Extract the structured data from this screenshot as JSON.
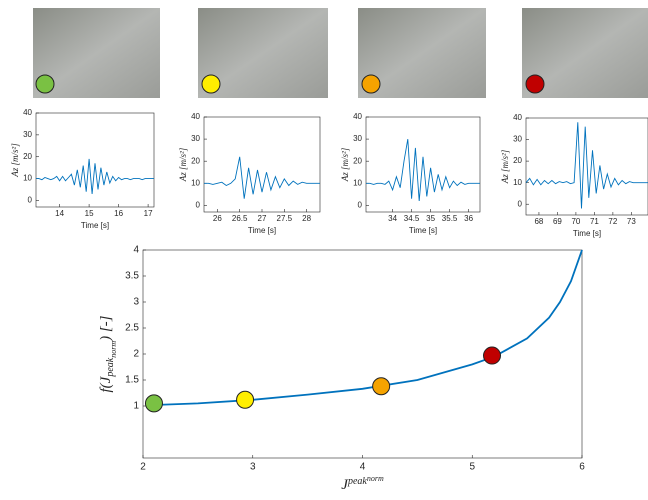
{
  "chart_data": [
    {
      "type": "line",
      "color": "#0072bd",
      "xlabel": "Time [s]",
      "ylabel": "Az [m/s²]",
      "x": [
        13.2,
        13.3,
        13.4,
        13.5,
        13.6,
        13.7,
        13.8,
        13.9,
        14.0,
        14.1,
        14.2,
        14.3,
        14.4,
        14.5,
        14.6,
        14.7,
        14.8,
        14.9,
        15.0,
        15.1,
        15.2,
        15.3,
        15.4,
        15.5,
        15.6,
        15.7,
        15.8,
        15.9,
        16.0,
        16.1,
        16.2,
        16.3,
        16.4,
        16.5,
        16.6,
        16.7,
        16.8,
        16.9,
        17.0,
        17.1,
        17.2
      ],
      "values": [
        10,
        10,
        9.5,
        10.5,
        10,
        9.5,
        10,
        11,
        9,
        11,
        9,
        10.5,
        12,
        7,
        14,
        6,
        16,
        4,
        19,
        3,
        17,
        5,
        15,
        7,
        13,
        8,
        11,
        9,
        10.5,
        9.5,
        10,
        10,
        9.5,
        10,
        10,
        10,
        9.5,
        10,
        10,
        10,
        10
      ],
      "xlim": [
        13.2,
        17.2
      ],
      "xticks": [
        14,
        15,
        16,
        17
      ],
      "ylim": [
        -3,
        40
      ],
      "yticks": [
        0,
        10,
        20,
        30,
        40
      ]
    },
    {
      "type": "line",
      "color": "#0072bd",
      "xlabel": "Time [s]",
      "ylabel": "Az [m/s²]",
      "x": [
        25.7,
        25.8,
        25.9,
        26.0,
        26.1,
        26.2,
        26.3,
        26.4,
        26.5,
        26.6,
        26.7,
        26.8,
        26.9,
        27.0,
        27.1,
        27.2,
        27.3,
        27.4,
        27.5,
        27.6,
        27.7,
        27.8,
        27.9,
        28.0,
        28.1,
        28.2,
        28.3
      ],
      "values": [
        10,
        10,
        9.5,
        10,
        10.5,
        9,
        10,
        12,
        22,
        3,
        17,
        5,
        16,
        6,
        15,
        7,
        13,
        8,
        12,
        9,
        11,
        9.5,
        10.5,
        10,
        10,
        10,
        10
      ],
      "xlim": [
        25.7,
        28.3
      ],
      "xticks": [
        26,
        26.5,
        27,
        27.5,
        28
      ],
      "ylim": [
        -3,
        40
      ],
      "yticks": [
        0,
        10,
        20,
        30,
        40
      ]
    },
    {
      "type": "line",
      "color": "#0072bd",
      "xlabel": "Time [s]",
      "ylabel": "Az [m/s²]",
      "x": [
        33.3,
        33.4,
        33.5,
        33.6,
        33.7,
        33.8,
        33.9,
        34.0,
        34.1,
        34.2,
        34.3,
        34.4,
        34.5,
        34.6,
        34.7,
        34.8,
        34.9,
        35.0,
        35.1,
        35.2,
        35.3,
        35.4,
        35.5,
        35.6,
        35.7,
        35.8,
        35.9,
        36.0,
        36.1,
        36.2,
        36.3
      ],
      "values": [
        10,
        10,
        9.5,
        10,
        10,
        9.5,
        11,
        7,
        13,
        8,
        20,
        30,
        3,
        26,
        2,
        22,
        4,
        17,
        6,
        14,
        7,
        13,
        8,
        11,
        9,
        10.5,
        9.5,
        10,
        10,
        10,
        10
      ],
      "xlim": [
        33.3,
        36.3
      ],
      "xticks": [
        34,
        34.5,
        35,
        35.5,
        36
      ],
      "ylim": [
        -3,
        40
      ],
      "yticks": [
        0,
        10,
        20,
        30,
        40
      ]
    },
    {
      "type": "line",
      "color": "#0072bd",
      "xlabel": "Time [s]",
      "ylabel": "Az [m/s²]",
      "x": [
        67.3,
        67.5,
        67.7,
        67.9,
        68.1,
        68.3,
        68.5,
        68.7,
        68.9,
        69.1,
        69.3,
        69.5,
        69.7,
        69.9,
        70.1,
        70.3,
        70.5,
        70.7,
        70.9,
        71.1,
        71.3,
        71.5,
        71.7,
        71.9,
        72.1,
        72.3,
        72.5,
        72.7,
        72.9,
        73.1,
        73.3,
        73.5,
        73.7,
        73.9
      ],
      "values": [
        10,
        12,
        9,
        11.5,
        9,
        11,
        9.5,
        11,
        9.5,
        10.5,
        10,
        10.5,
        9.5,
        10,
        38,
        -2,
        36,
        3,
        25,
        5,
        18,
        7,
        14,
        8,
        12,
        9,
        11,
        9.5,
        10.5,
        10,
        10,
        10,
        10,
        10
      ],
      "xlim": [
        67.3,
        73.9
      ],
      "xticks": [
        68,
        69,
        70,
        71,
        72,
        73
      ],
      "ylim": [
        -5,
        40
      ],
      "yticks": [
        0,
        10,
        20,
        30,
        40
      ]
    },
    {
      "type": "line",
      "color": "#0072bd",
      "xlabel": [
        "J",
        "peak",
        "norm"
      ],
      "ylabel": [
        "f(",
        "J",
        "peak",
        "norm",
        ") [-]"
      ],
      "x": [
        2.1,
        2.5,
        3,
        3.5,
        4,
        4.5,
        5,
        5.2,
        5.5,
        5.7,
        5.8,
        5.9,
        6
      ],
      "values": [
        1.02,
        1.05,
        1.12,
        1.22,
        1.33,
        1.5,
        1.8,
        1.95,
        2.3,
        2.7,
        3.0,
        3.4,
        4
      ],
      "markers": {
        "x": [
          2.1,
          2.93,
          4.17,
          5.18
        ],
        "values": [
          1.05,
          1.12,
          1.38,
          1.97
        ],
        "colors": [
          "#7ac143",
          "#ffee00",
          "#f5a300",
          "#c00000"
        ]
      },
      "xlim": [
        2,
        6
      ],
      "xticks": [
        2,
        3,
        4,
        5,
        6
      ],
      "ylim": [
        0,
        4
      ],
      "yticks": [
        1,
        1.5,
        2,
        2.5,
        3,
        3.5,
        4
      ]
    }
  ]
}
